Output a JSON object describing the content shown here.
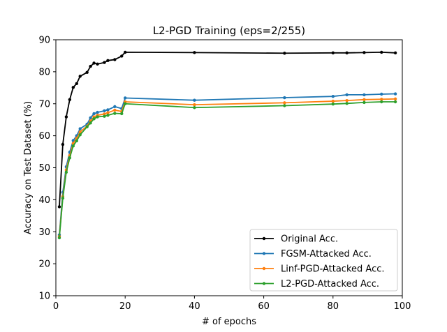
{
  "chart_data": {
    "type": "line",
    "title": "L2-PGD Training (eps=2/255)",
    "xlabel": "# of epochs",
    "ylabel": "Accuracy on Test Dataset (%)",
    "xlim": [
      0,
      100
    ],
    "ylim": [
      10,
      90
    ],
    "xticks": [
      0,
      20,
      40,
      60,
      80,
      100
    ],
    "yticks": [
      10,
      20,
      30,
      40,
      50,
      60,
      70,
      80,
      90
    ],
    "grid": false,
    "legend_position": "bottom-right",
    "x": [
      1,
      2,
      3,
      4,
      5,
      6,
      7,
      9,
      10,
      11,
      12,
      14,
      15,
      17,
      19,
      20,
      40,
      66,
      80,
      84,
      89,
      94,
      98
    ],
    "series": [
      {
        "name": "Original Acc.",
        "color": "#000000",
        "values": [
          37.8,
          57.3,
          65.9,
          71.3,
          75.1,
          76.3,
          78.6,
          79.8,
          81.7,
          82.7,
          82.4,
          82.9,
          83.5,
          83.8,
          84.9,
          86.1,
          86.0,
          85.8,
          85.9,
          85.9,
          86.0,
          86.1,
          85.9
        ]
      },
      {
        "name": "FGSM-Attacked Acc.",
        "color": "#1f77b4",
        "values": [
          29.0,
          42.3,
          50.3,
          54.9,
          58.5,
          60.0,
          62.2,
          63.6,
          65.6,
          66.9,
          67.3,
          67.8,
          68.1,
          69.1,
          68.5,
          71.8,
          71.1,
          71.9,
          72.3,
          72.8,
          72.8,
          73.0,
          73.1
        ]
      },
      {
        "name": "Linf-PGD-Attacked Acc.",
        "color": "#ff7f0e",
        "values": [
          28.5,
          41.0,
          49.3,
          53.8,
          57.6,
          59.2,
          61.2,
          63.0,
          64.6,
          65.9,
          66.4,
          66.8,
          67.2,
          68.0,
          67.6,
          70.6,
          69.7,
          70.3,
          70.8,
          71.0,
          71.3,
          71.4,
          71.5
        ]
      },
      {
        "name": "L2-PGD-Attacked Acc.",
        "color": "#2ca02c",
        "values": [
          28.1,
          40.5,
          48.6,
          53.1,
          56.8,
          58.4,
          60.3,
          62.8,
          64.0,
          65.3,
          65.9,
          66.1,
          66.4,
          67.0,
          66.9,
          70.0,
          68.8,
          69.4,
          69.9,
          70.1,
          70.4,
          70.6,
          70.6
        ]
      }
    ]
  }
}
